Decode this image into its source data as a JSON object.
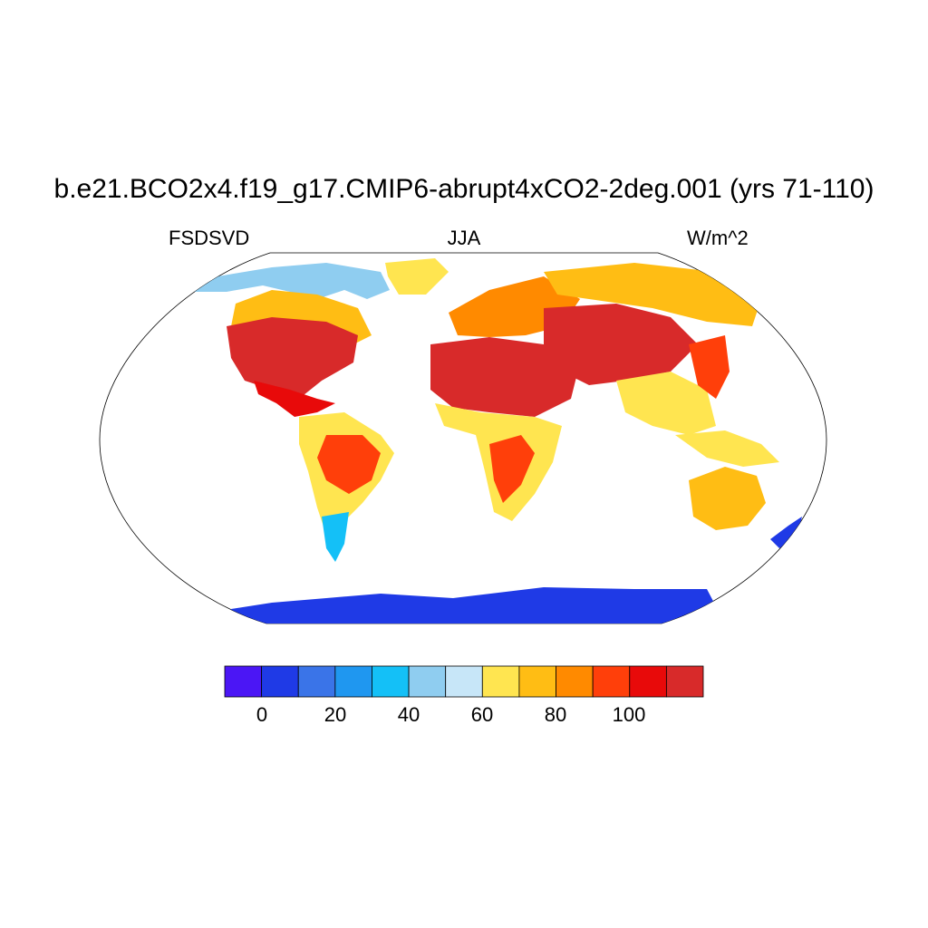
{
  "title": "b.e21.BCO2x4.f19_g17.CMIP6-abrupt4xCO2-2deg.001 (yrs 71-110)",
  "subtitle_left": "FSDSVD",
  "subtitle_center": "JJA",
  "subtitle_right": "W/m^2",
  "projection": "robinson",
  "colorbar": {
    "colors": [
      "#4b16f5",
      "#1f3ae6",
      "#3a74e8",
      "#1f97f0",
      "#14c0f7",
      "#8fcdf0",
      "#c7e6f8",
      "#ffe550",
      "#ffbd14",
      "#ff8a00",
      "#ff3f0a",
      "#e80a0a",
      "#d82a2a"
    ],
    "tick_labels": [
      "0",
      "20",
      "40",
      "60",
      "80",
      "100"
    ],
    "tick_values": [
      0,
      20,
      40,
      60,
      80,
      100
    ]
  },
  "land_color_classes": {
    "antarctica": "#1f3ae6",
    "sahara_arabia": "#d82a2a",
    "usa": "#e80a0a",
    "amazon": "#ff3f0a",
    "tropics": "#ffe550",
    "high_latitudes": "#8fcdf0"
  }
}
